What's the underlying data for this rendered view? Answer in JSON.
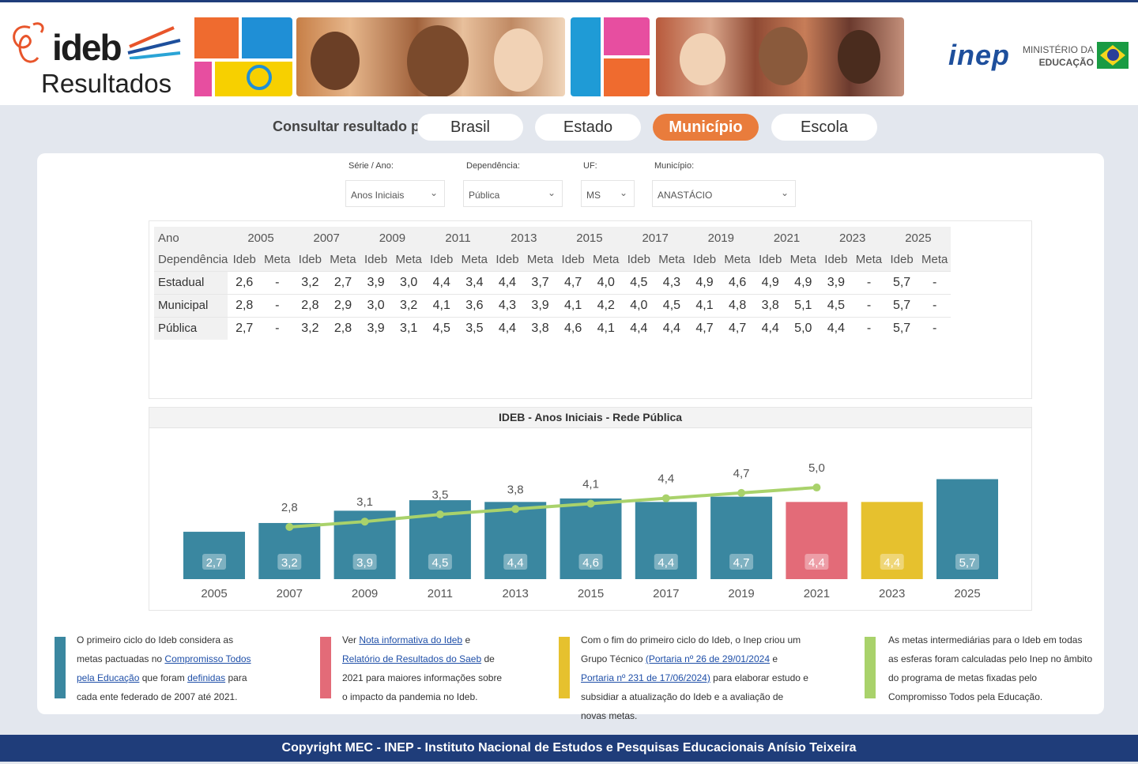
{
  "header": {
    "brand": "ideb",
    "subtitle": "Resultados",
    "inep": "inep",
    "ministry_line1": "MINISTÉRIO DA",
    "ministry_line2": "EDUCAÇÃO"
  },
  "nav": {
    "label": "Consultar resultado por:",
    "buttons": [
      "Brasil",
      "Estado",
      "Município",
      "Escola"
    ],
    "active": "Município"
  },
  "filters": [
    {
      "label": "Série / Ano:",
      "value": "Anos Iniciais"
    },
    {
      "label": "Dependência:",
      "value": "Pública"
    },
    {
      "label": "UF:",
      "value": "MS"
    },
    {
      "label": "Município:",
      "value": "ANASTÁCIO"
    }
  ],
  "table": {
    "year_header": "Ano",
    "dep_header": "Dependência",
    "ideb_label": "Ideb",
    "meta_label": "Meta",
    "years": [
      "2005",
      "2007",
      "2009",
      "2011",
      "2013",
      "2015",
      "2017",
      "2019",
      "2021",
      "2023",
      "2025"
    ],
    "rows": [
      {
        "label": "Estadual",
        "values": [
          "2,6",
          "-",
          "3,2",
          "2,7",
          "3,9",
          "3,0",
          "4,4",
          "3,4",
          "4,4",
          "3,7",
          "4,7",
          "4,0",
          "4,5",
          "4,3",
          "4,9",
          "4,6",
          "4,9",
          "4,9",
          "3,9",
          "-",
          "5,7",
          "-"
        ]
      },
      {
        "label": "Municipal",
        "values": [
          "2,8",
          "-",
          "2,8",
          "2,9",
          "3,0",
          "3,2",
          "4,1",
          "3,6",
          "4,3",
          "3,9",
          "4,1",
          "4,2",
          "4,0",
          "4,5",
          "4,1",
          "4,8",
          "3,8",
          "5,1",
          "4,5",
          "-",
          "5,7",
          "-"
        ]
      },
      {
        "label": "Pública",
        "values": [
          "2,7",
          "-",
          "3,2",
          "2,8",
          "3,9",
          "3,1",
          "4,5",
          "3,5",
          "4,4",
          "3,8",
          "4,6",
          "4,1",
          "4,4",
          "4,4",
          "4,7",
          "4,7",
          "4,4",
          "5,0",
          "4,4",
          "-",
          "5,7",
          "-"
        ]
      }
    ]
  },
  "chart_data": {
    "type": "bar",
    "title": "IDEB - Anos Iniciais - Rede Pública",
    "categories": [
      "2005",
      "2007",
      "2009",
      "2011",
      "2013",
      "2015",
      "2017",
      "2019",
      "2021",
      "2023",
      "2025"
    ],
    "series": [
      {
        "values": [
          2.7,
          3.2,
          3.9,
          4.5,
          4.4,
          4.6,
          4.4,
          4.7,
          4.4,
          4.4,
          5.7
        ]
      },
      {
        "type": "line",
        "values": [
          null,
          2.8,
          3.1,
          3.5,
          3.8,
          4.1,
          4.4,
          4.7,
          5.0,
          null,
          null
        ]
      }
    ],
    "bar_labels": [
      "2,7",
      "3,2",
      "3,9",
      "4,5",
      "4,4",
      "4,6",
      "4,4",
      "4,7",
      "4,4",
      "4,4",
      "5,7"
    ],
    "meta_labels": [
      "",
      "2,8",
      "3,1",
      "3,5",
      "3,8",
      "4,1",
      "4,4",
      "4,7",
      "5,0",
      "",
      ""
    ],
    "bar_colors": [
      "#3a87a0",
      "#3a87a0",
      "#3a87a0",
      "#3a87a0",
      "#3a87a0",
      "#3a87a0",
      "#3a87a0",
      "#3a87a0",
      "#e36b78",
      "#e6c12e",
      "#3a87a0"
    ],
    "line_color": "#a9d26b",
    "ylim": [
      0,
      6
    ],
    "grid": false
  },
  "notes": [
    {
      "color": "#3a87a0",
      "parts": [
        {
          "t": "O primeiro ciclo do Ideb considera as metas pactuadas no "
        },
        {
          "t": "Compromisso Todos pela Educação",
          "link": true
        },
        {
          "t": " que foram "
        },
        {
          "t": "definidas",
          "link": true
        },
        {
          "t": " para cada ente federado de 2007 até 2021."
        }
      ]
    },
    {
      "color": "#e36b78",
      "parts": [
        {
          "t": "Ver "
        },
        {
          "t": "Nota informativa do Ideb",
          "link": true
        },
        {
          "t": " e "
        },
        {
          "t": "Relatório de Resultados do Saeb",
          "link": true
        },
        {
          "t": " de 2021 para maiores informações sobre o impacto da pandemia no Ideb."
        }
      ]
    },
    {
      "color": "#e6c12e",
      "parts": [
        {
          "t": "Com o fim do primeiro ciclo do Ideb, o Inep criou um Grupo Técnico "
        },
        {
          "t": "(Portaria nº 26 de 29/01/2024",
          "link": true
        },
        {
          "t": " e "
        },
        {
          "t": "Portaria nº 231 de 17/06/2024)",
          "link": true
        },
        {
          "t": " para elaborar estudo e subsidiar a atualização do Ideb e a avaliação de novas metas."
        }
      ]
    },
    {
      "color": "#a9d26b",
      "parts": [
        {
          "t": "As metas intermediárias para o Ideb em todas as esferas foram calculadas pelo Inep no âmbito do programa de metas fixadas pelo Compromisso Todos pela Educação."
        }
      ]
    }
  ],
  "footer": "Copyright MEC - INEP - Instituto Nacional de Estudos e Pesquisas Educacionais Anísio Teixeira"
}
